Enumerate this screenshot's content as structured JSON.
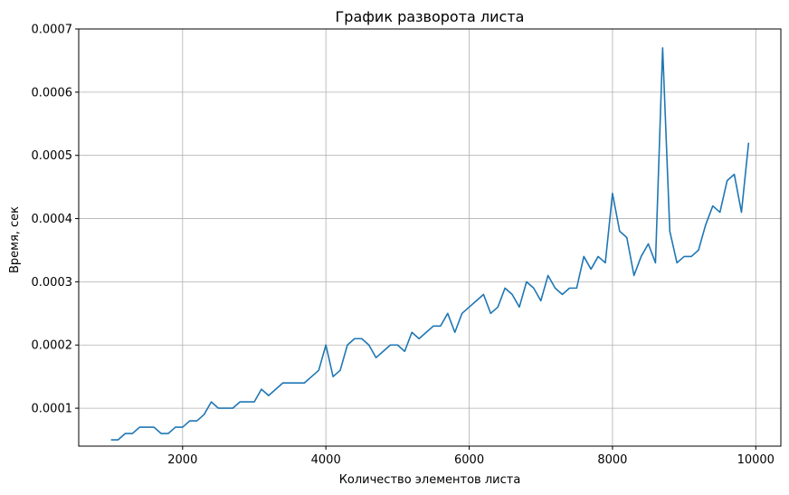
{
  "chart_data": {
    "type": "line",
    "title": "График разворота листа",
    "xlabel": "Количество элементов листа",
    "ylabel": "Время, сек",
    "xlim": [
      550,
      10350
    ],
    "ylim": [
      4e-05,
      0.0007
    ],
    "grid": true,
    "line_color": "#1f77b4",
    "x_ticks": [
      2000,
      4000,
      6000,
      8000,
      10000
    ],
    "x_tick_labels": [
      "2000",
      "4000",
      "6000",
      "8000",
      "10000"
    ],
    "y_ticks": [
      0.0001,
      0.0002,
      0.0003,
      0.0004,
      0.0005,
      0.0006,
      0.0007
    ],
    "y_tick_labels": [
      "0.0001",
      "0.0002",
      "0.0003",
      "0.0004",
      "0.0005",
      "0.0006",
      "0.0007"
    ],
    "series": [
      {
        "x": [
          1000,
          1100,
          1200,
          1300,
          1400,
          1500,
          1600,
          1700,
          1800,
          1900,
          2000,
          2100,
          2200,
          2300,
          2400,
          2500,
          2600,
          2700,
          2800,
          2900,
          3000,
          3100,
          3200,
          3300,
          3400,
          3500,
          3600,
          3700,
          3800,
          3900,
          4000,
          4100,
          4200,
          4300,
          4400,
          4500,
          4600,
          4700,
          4800,
          4900,
          5000,
          5100,
          5200,
          5300,
          5400,
          5500,
          5600,
          5700,
          5800,
          5900,
          6000,
          6100,
          6200,
          6300,
          6400,
          6500,
          6600,
          6700,
          6800,
          6900,
          7000,
          7100,
          7200,
          7300,
          7400,
          7500,
          7600,
          7700,
          7800,
          7900,
          8000,
          8100,
          8200,
          8300,
          8400,
          8500,
          8600,
          8700,
          8800,
          8900,
          9000,
          9100,
          9200,
          9300,
          9400,
          9500,
          9600,
          9700,
          9800,
          9900
        ],
        "y": [
          5e-05,
          5e-05,
          6e-05,
          6e-05,
          7e-05,
          7e-05,
          7e-05,
          6e-05,
          6e-05,
          7e-05,
          7e-05,
          8e-05,
          8e-05,
          9e-05,
          0.00011,
          0.0001,
          0.0001,
          0.0001,
          0.00011,
          0.00011,
          0.00011,
          0.00013,
          0.00012,
          0.00013,
          0.00014,
          0.00014,
          0.00014,
          0.00014,
          0.00015,
          0.00016,
          0.0002,
          0.00015,
          0.00016,
          0.0002,
          0.00021,
          0.00021,
          0.0002,
          0.00018,
          0.00019,
          0.0002,
          0.0002,
          0.00019,
          0.00022,
          0.00021,
          0.00022,
          0.00023,
          0.00023,
          0.00025,
          0.00022,
          0.00025,
          0.00026,
          0.00027,
          0.00028,
          0.00025,
          0.00026,
          0.00029,
          0.00028,
          0.00026,
          0.0003,
          0.00029,
          0.00027,
          0.00031,
          0.00029,
          0.00028,
          0.00029,
          0.00029,
          0.00034,
          0.00032,
          0.00034,
          0.00033,
          0.00044,
          0.00038,
          0.00037,
          0.00031,
          0.00034,
          0.00036,
          0.00033,
          0.00067,
          0.00038,
          0.00033,
          0.00034,
          0.00034,
          0.00035,
          0.00039,
          0.00042,
          0.00041,
          0.00046,
          0.00047,
          0.00041,
          0.00052
        ]
      }
    ]
  }
}
